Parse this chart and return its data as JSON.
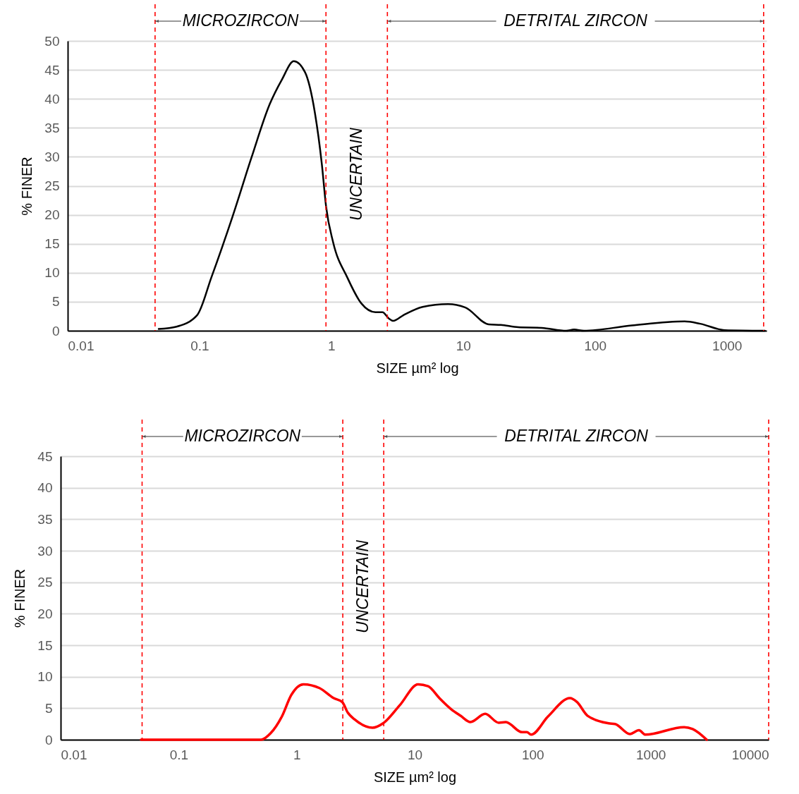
{
  "chart_data": [
    {
      "type": "line",
      "xlabel": "SIZE µm² log",
      "ylabel": "% FINER",
      "log": "x",
      "grid": "y",
      "xlim": [
        0.01,
        2000
      ],
      "xticks": [
        0.01,
        0.1,
        1,
        10,
        100,
        1000
      ],
      "ylim": [
        0,
        50
      ],
      "yticks": [
        0,
        5,
        10,
        15,
        20,
        25,
        30,
        35,
        40,
        45,
        50
      ],
      "series": [
        {
          "color": "#000000",
          "x": [
            0.049,
            0.067,
            0.096,
            0.123,
            0.178,
            0.248,
            0.341,
            0.421,
            0.519,
            0.631,
            0.75,
            0.847,
            0.912,
            1.03,
            1.32,
            1.69,
            2.16,
            2.44,
            2.73,
            2.94,
            3.53,
            4.92,
            7.67,
            10.4,
            15.6,
            19.3,
            26.2,
            39.4,
            60.5,
            69.3,
            82.4,
            190,
            478,
            627,
            964,
            1941
          ],
          "values": [
            0.3,
            0.7,
            2.7,
            9.2,
            19.7,
            29.9,
            39.1,
            43.3,
            46.5,
            44.6,
            37.6,
            28.7,
            21.4,
            15.3,
            9.2,
            4.7,
            3.2,
            3.2,
            2.1,
            1.7,
            2.7,
            4.1,
            4.6,
            4.0,
            1.1,
            1.0,
            0.6,
            0.5,
            0,
            0.2,
            0,
            0.9,
            1.6,
            1.2,
            0.1,
            0
          ]
        }
      ],
      "ref_lines": [
        {
          "axis": "x",
          "value": 0.046,
          "color": "#ff0000",
          "line_style": "dashed"
        },
        {
          "axis": "x",
          "value": 0.91,
          "color": "#ff0000",
          "line_style": "dashed"
        },
        {
          "axis": "x",
          "value": 2.66,
          "color": "#ff0000",
          "line_style": "dashed"
        },
        {
          "axis": "x",
          "value": 1900,
          "color": "#ff0000",
          "line_style": "dashed"
        }
      ],
      "annotations": [
        "MICROZIRCON",
        "UNCERTAIN",
        "DETRITAL ZIRCON"
      ]
    },
    {
      "type": "line",
      "xlabel": "SIZE µm² log",
      "ylabel": "% FINER",
      "log": "x",
      "grid": "y",
      "xlim": [
        0.01,
        10000
      ],
      "xticks": [
        0.01,
        0.1,
        1,
        10,
        100,
        1000,
        10000
      ],
      "ylim": [
        0,
        45
      ],
      "yticks": [
        0,
        5,
        10,
        15,
        20,
        25,
        30,
        35,
        40,
        45
      ],
      "series": [
        {
          "color": "#ff0000",
          "x": [
            0.048,
            0.5,
            0.6,
            0.75,
            0.9,
            1.14,
            1.56,
            2.06,
            2.43,
            2.71,
            3.11,
            4.39,
            5.4,
            7.5,
            10.7,
            13.0,
            16.2,
            20.5,
            24.5,
            29.7,
            39.6,
            51.5,
            59.2,
            81.1,
            89.3,
            97.0,
            135,
            207,
            237,
            292,
            441,
            499,
            667,
            796,
            902,
            1923,
            2270,
            2985
          ],
          "values": [
            0,
            0,
            1.0,
            3.7,
            7.1,
            8.8,
            8.2,
            6.6,
            6.0,
            4.3,
            3.2,
            1.9,
            2.6,
            5.5,
            8.8,
            8.5,
            6.6,
            4.8,
            3.8,
            2.8,
            4.1,
            2.7,
            2.8,
            1.2,
            1.2,
            0.8,
            3.7,
            6.6,
            6.0,
            3.8,
            2.6,
            2.5,
            0.9,
            1.5,
            0.8,
            2.0,
            1.7,
            0
          ]
        }
      ],
      "ref_lines": [
        {
          "axis": "x",
          "value": 0.049,
          "color": "#ff0000",
          "line_style": "dashed"
        },
        {
          "axis": "x",
          "value": 2.46,
          "color": "#ff0000",
          "line_style": "dashed"
        },
        {
          "axis": "x",
          "value": 5.47,
          "color": "#ff0000",
          "line_style": "dashed"
        },
        {
          "axis": "x",
          "value": 10000,
          "color": "#ff0000",
          "line_style": "dashed"
        }
      ],
      "annotations": [
        "MICROZIRCON",
        "UNCERTAIN",
        "DETRITAL ZIRCON"
      ]
    }
  ]
}
